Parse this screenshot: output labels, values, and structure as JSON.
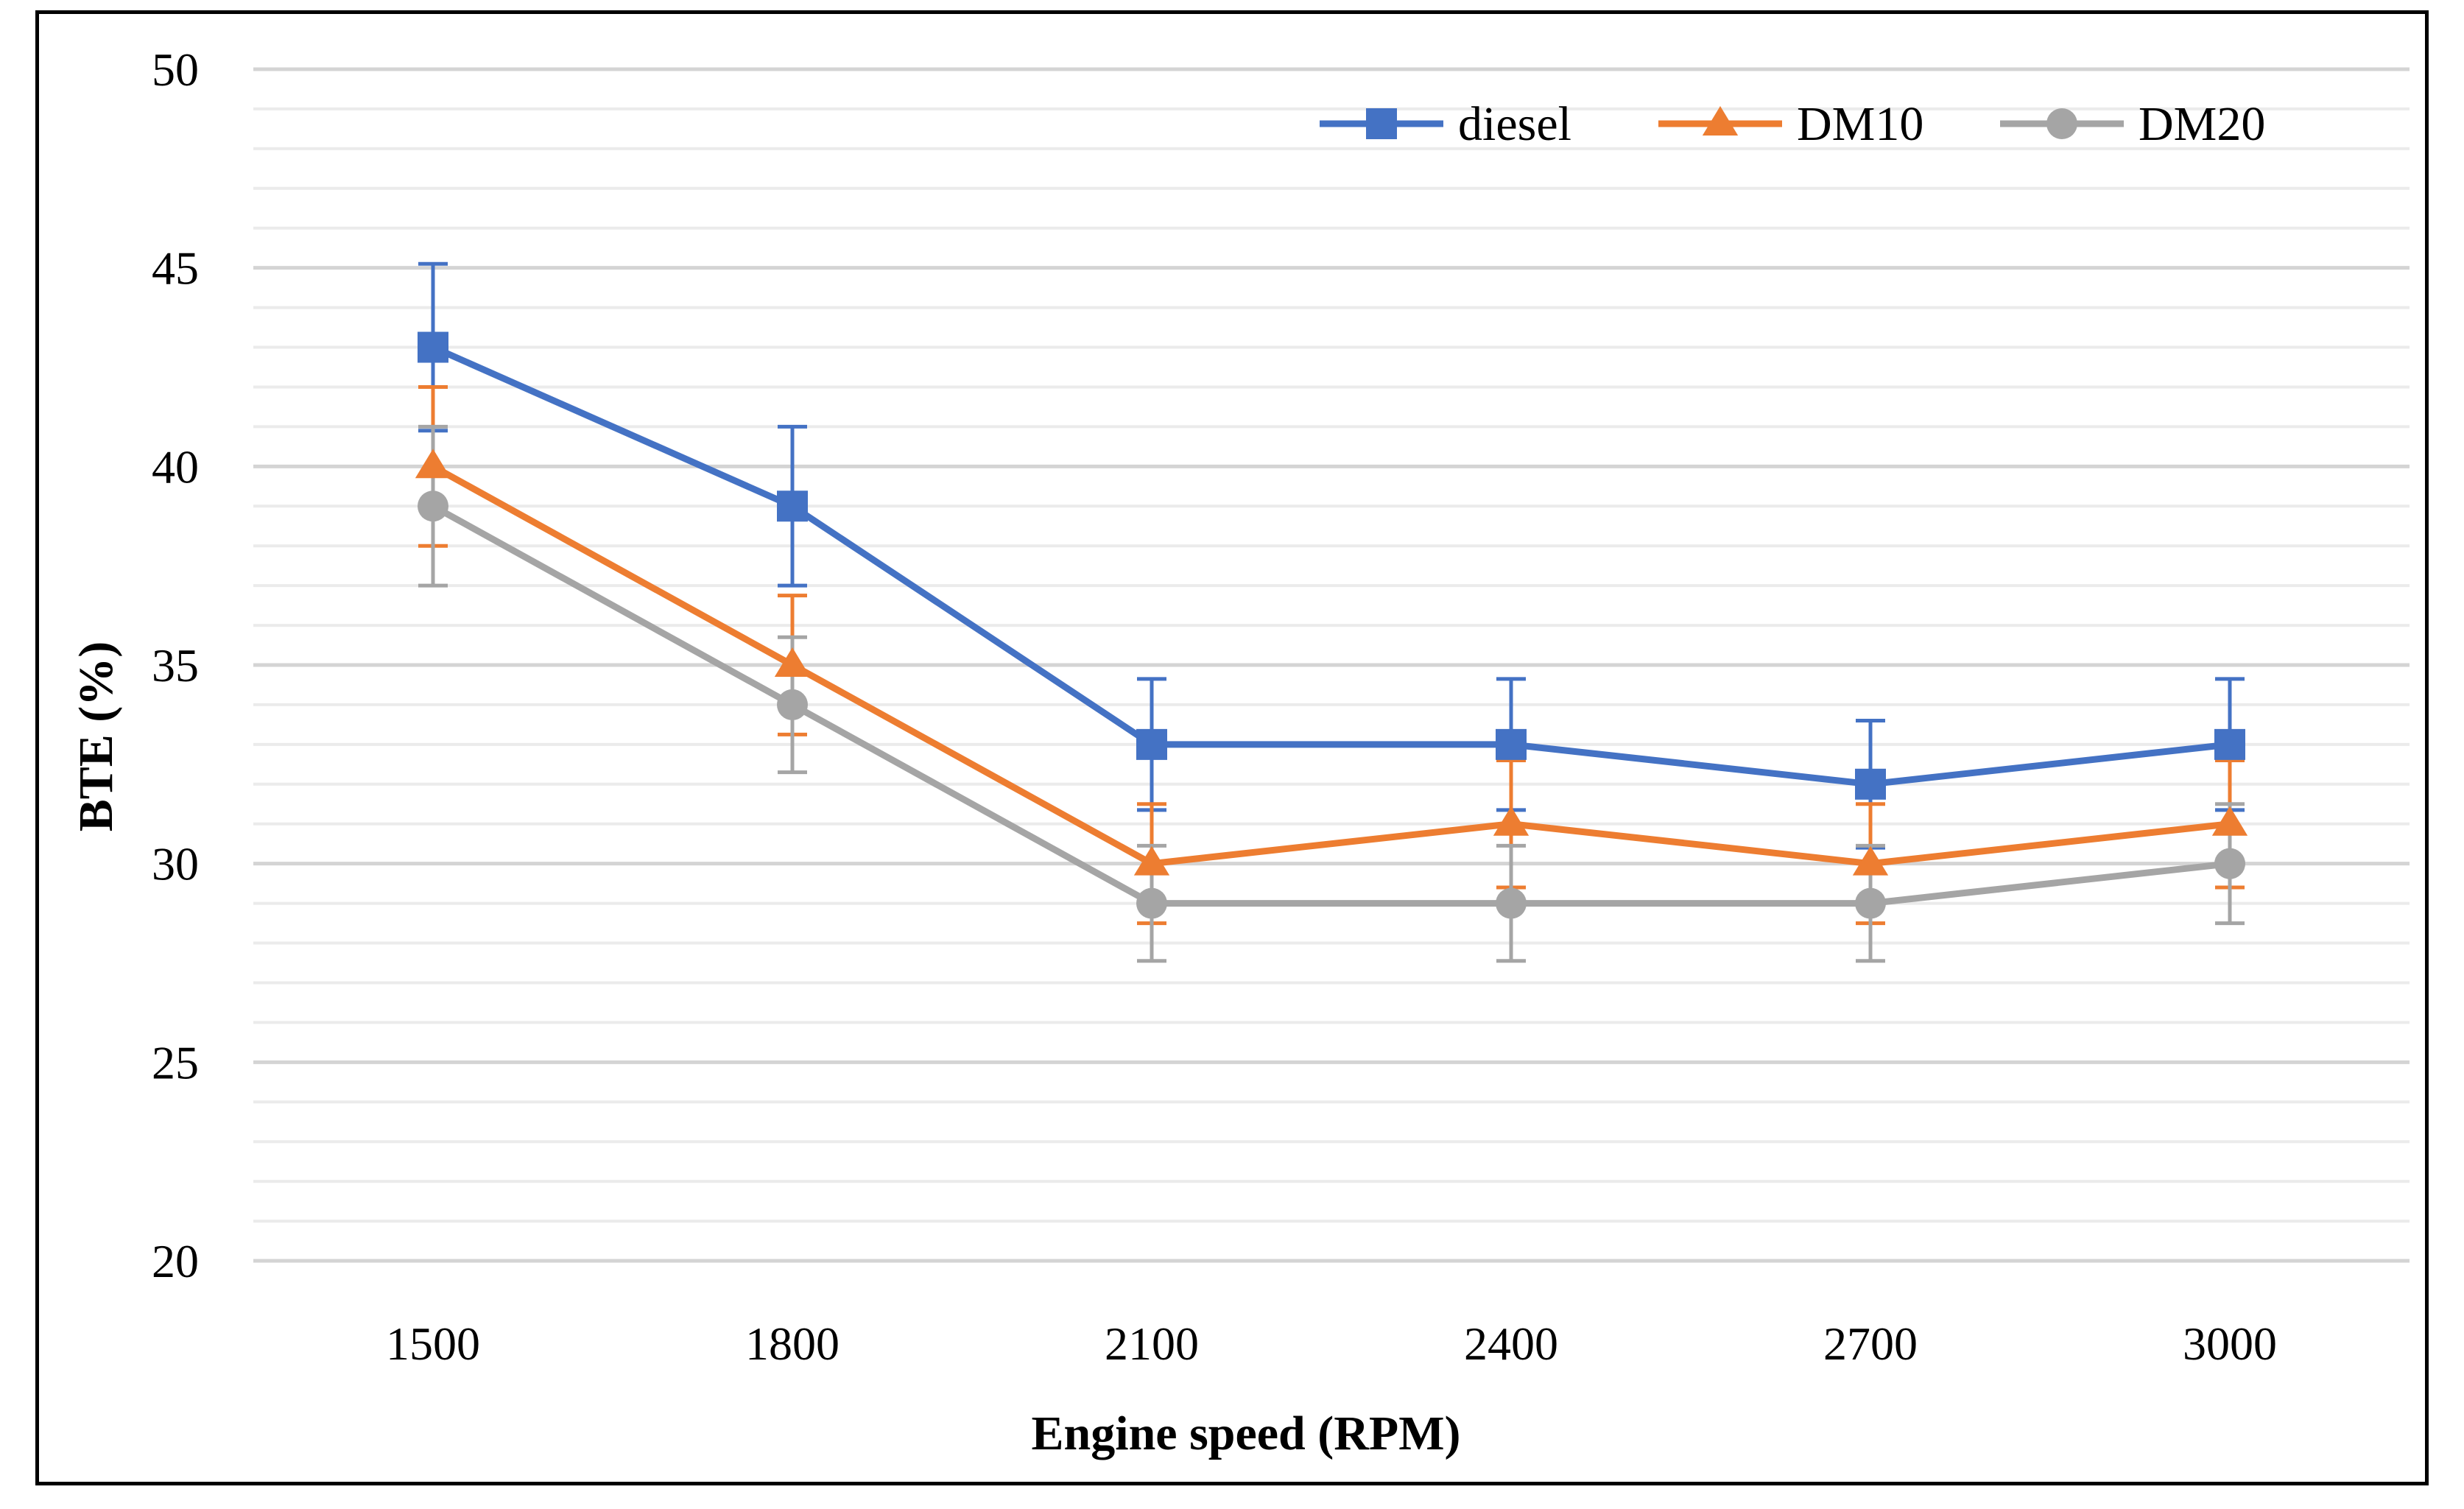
{
  "chart_data": {
    "type": "line",
    "title": "",
    "xlabel": "Engine  speed (RPM)",
    "ylabel": "BTE (%)",
    "categories": [
      "1500",
      "1800",
      "2100",
      "2400",
      "2700",
      "3000"
    ],
    "ylim": [
      20,
      50
    ],
    "yticks": [
      20,
      25,
      30,
      35,
      40,
      45,
      50
    ],
    "y_minor_step": 1,
    "grid": true,
    "legend_position": "top-right",
    "series": [
      {
        "name": "diesel",
        "color": "#4472C4",
        "marker": "square",
        "values": [
          43,
          39,
          33,
          33,
          32,
          33
        ],
        "error": [
          2.1,
          2.0,
          1.65,
          1.65,
          1.6,
          1.65
        ]
      },
      {
        "name": "DM10",
        "color": "#ED7D31",
        "marker": "triangle",
        "values": [
          40,
          35,
          30,
          31,
          30,
          31
        ],
        "error": [
          2.0,
          1.75,
          1.5,
          1.6,
          1.5,
          1.6
        ]
      },
      {
        "name": "DM20",
        "color": "#A5A5A5",
        "marker": "circle",
        "values": [
          39,
          34,
          29,
          29,
          29,
          30
        ],
        "error": [
          2.0,
          1.7,
          1.45,
          1.45,
          1.45,
          1.5
        ]
      }
    ]
  }
}
